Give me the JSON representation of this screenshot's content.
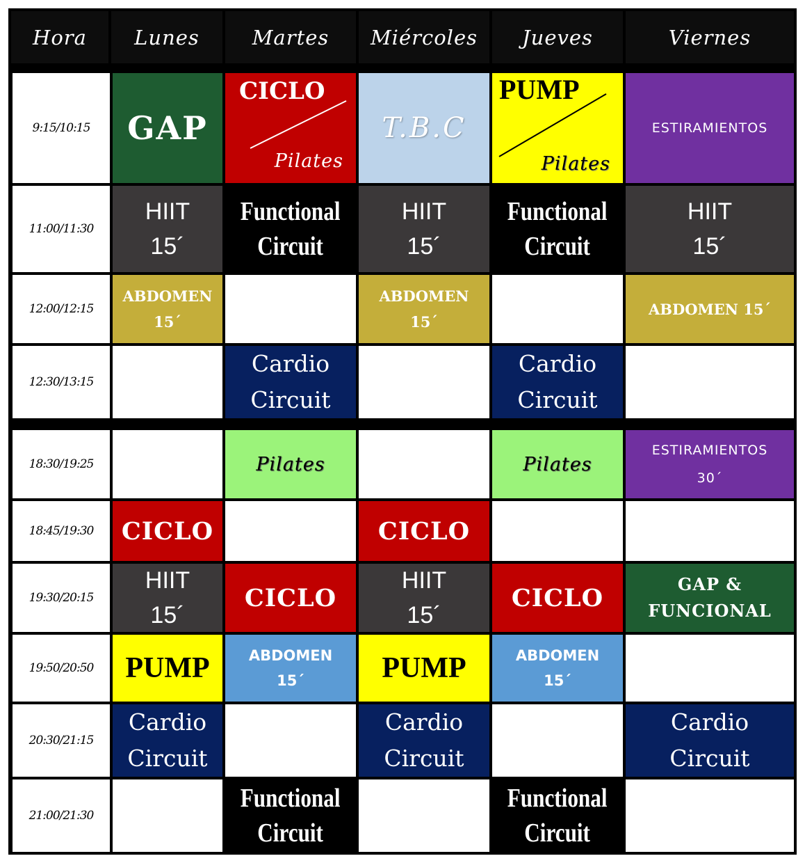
{
  "headers": [
    "Hora",
    "Lunes",
    "Martes",
    "Miércoles",
    "Jueves",
    "Viernes"
  ],
  "times": [
    "9:15/10:15",
    "11:00/11:30",
    "12:00/12:15",
    "12:30/13:15",
    "18:30/19:25",
    "18:45/19:30",
    "19:30/20:15",
    "19:50/20:50",
    "20:30/21:15",
    "21:00/21:30"
  ],
  "classes": {
    "gap": "GAP",
    "ciclo": "CICLO",
    "pilates": "Pilates",
    "tbc": "T.B.C",
    "pump": "PUMP",
    "estiramientos": "ESTIRAMIENTOS",
    "hiit": "HIIT",
    "fifteen": "15´",
    "thirty": "30´",
    "functional": "Functional",
    "circuit": "Circuit",
    "abdomen": "ABDOMEN",
    "abdomen_15": "ABDOMEN 15´",
    "cardio": "Cardio",
    "gap_and": "GAP &",
    "funcional": "FUNCIONAL"
  },
  "colors": {
    "gap_green": "#1e5c31",
    "ciclo_red": "#c00000",
    "tbc_blue": "#bcd3ea",
    "pump_yellow": "#ffff00",
    "estiramientos_purple": "#7030a0",
    "hiit_gray": "#3b3839",
    "abdomen_gold": "#c4ae3a",
    "abdomen_blue": "#5b9bd5",
    "cardio_navy": "#07205f",
    "pilates_green": "#9bf37a"
  }
}
